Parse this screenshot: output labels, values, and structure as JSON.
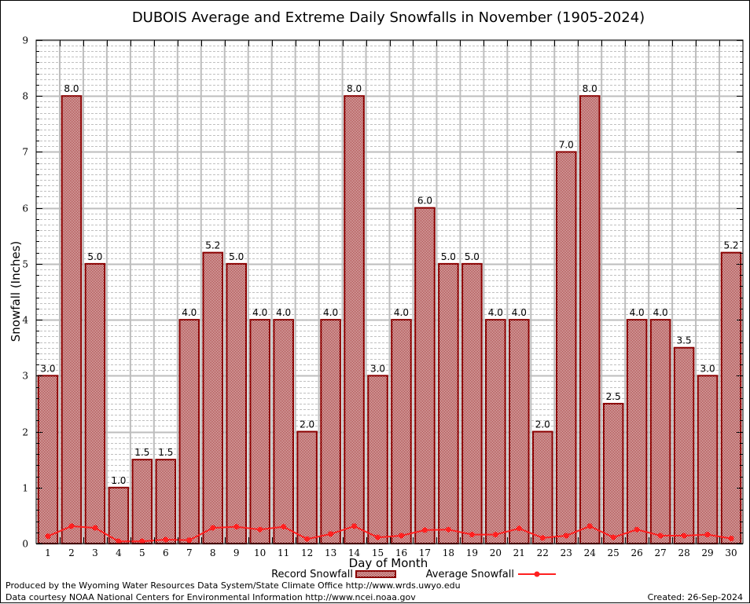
{
  "chart_data": {
    "type": "bar",
    "title": "DUBOIS Average and Extreme Daily Snowfalls in November (1905-2024)",
    "xlabel": "Day of Month",
    "ylabel": "Snowfall (Inches)",
    "ylim": [
      0,
      9
    ],
    "yticks": [
      0,
      1,
      2,
      3,
      4,
      5,
      6,
      7,
      8,
      9
    ],
    "grid": true,
    "legend_placement": "bottom-center",
    "categories": [
      "1",
      "2",
      "3",
      "4",
      "5",
      "6",
      "7",
      "8",
      "9",
      "10",
      "11",
      "12",
      "13",
      "14",
      "15",
      "16",
      "17",
      "18",
      "19",
      "20",
      "21",
      "22",
      "23",
      "24",
      "25",
      "26",
      "27",
      "28",
      "29",
      "30"
    ],
    "series": [
      {
        "name": "Record Snowfall",
        "type": "bar",
        "color": "#8b0000",
        "values": [
          3.0,
          8.0,
          5.0,
          1.0,
          1.5,
          1.5,
          4.0,
          5.2,
          5.0,
          4.0,
          4.0,
          2.0,
          4.0,
          8.0,
          3.0,
          4.0,
          6.0,
          5.0,
          5.0,
          4.0,
          4.0,
          2.0,
          7.0,
          8.0,
          2.5,
          4.0,
          4.0,
          3.5,
          3.0,
          5.2
        ],
        "labels": [
          "3.0",
          "8.0",
          "5.0",
          "1.0",
          "1.5",
          "1.5",
          "4.0",
          "5.2",
          "5.0",
          "4.0",
          "4.0",
          "2.0",
          "4.0",
          "8.0",
          "3.0",
          "4.0",
          "6.0",
          "5.0",
          "5.0",
          "4.0",
          "4.0",
          "2.0",
          "7.0",
          "8.0",
          "2.5",
          "4.0",
          "4.0",
          "3.5",
          "3.0",
          "5.2"
        ]
      },
      {
        "name": "Average Snowfall",
        "type": "line",
        "color": "#ff2020",
        "values": [
          0.13,
          0.31,
          0.28,
          0.04,
          0.04,
          0.07,
          0.06,
          0.28,
          0.3,
          0.25,
          0.3,
          0.08,
          0.17,
          0.31,
          0.11,
          0.14,
          0.24,
          0.25,
          0.16,
          0.16,
          0.27,
          0.1,
          0.14,
          0.31,
          0.11,
          0.25,
          0.14,
          0.14,
          0.16,
          0.09
        ]
      }
    ]
  },
  "footer": {
    "produced_by": "Produced by the Wyoming Water Resources Data System/State Climate Office http://www.wrds.uwyo.edu",
    "data_courtesy": "Data courtesy NOAA National Centers for Environmental Information http://www.ncei.noaa.gov",
    "created": "Created:  26-Sep-2024"
  }
}
